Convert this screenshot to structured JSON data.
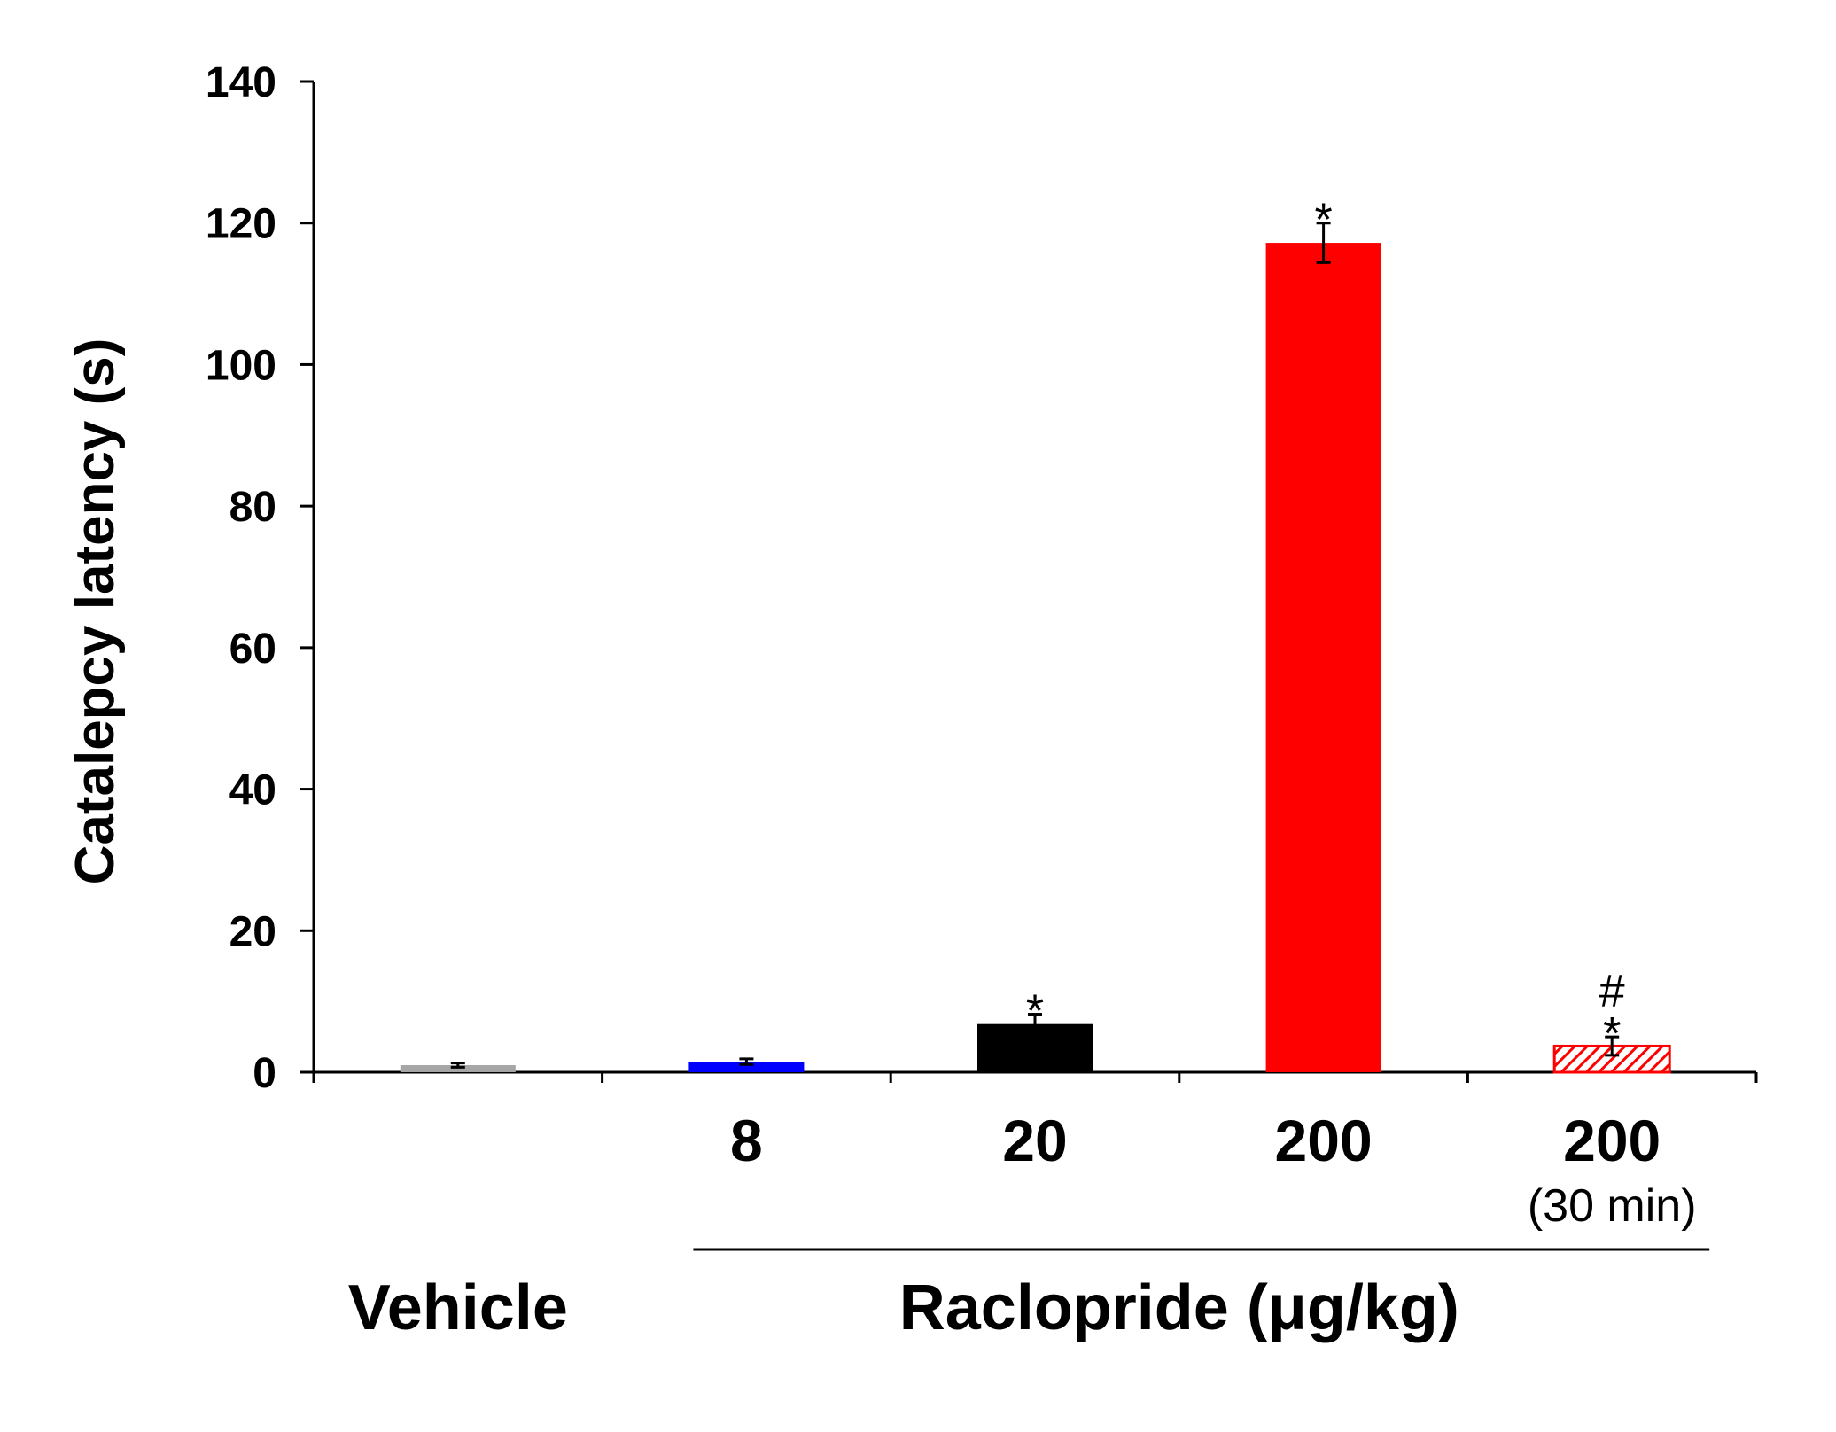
{
  "chart_data": {
    "type": "bar",
    "ylabel": "Catalepcy latency (s)",
    "ylim": [
      0,
      140
    ],
    "yticks": [
      "0",
      "20",
      "40",
      "60",
      "80",
      "100",
      "120",
      "140"
    ],
    "categories": [
      "",
      "8",
      "20",
      "200",
      "200"
    ],
    "category_sublabels": [
      "",
      "",
      "",
      "",
      "(30 min)"
    ],
    "values": [
      1.0,
      1.5,
      6.8,
      117.2,
      3.7
    ],
    "errors": [
      0.3,
      0.4,
      1.4,
      2.8,
      1.3
    ],
    "bar_colors": [
      "#a6a6a6",
      "#0000ff",
      "#000000",
      "#ff0000",
      "#ff0000"
    ],
    "bar_patterns": [
      "solid",
      "solid",
      "solid",
      "solid",
      "hatched"
    ],
    "annotations": [
      {
        "index": 2,
        "lines": [
          "*"
        ]
      },
      {
        "index": 3,
        "lines": [
          "*"
        ]
      },
      {
        "index": 4,
        "lines": [
          "#",
          "*"
        ]
      }
    ],
    "group_labels": [
      {
        "text": "Vehicle",
        "from": 0,
        "to": 0,
        "underline": false
      },
      {
        "text": "Raclopride (μg/kg)",
        "from": 1,
        "to": 4,
        "underline": true
      }
    ]
  }
}
